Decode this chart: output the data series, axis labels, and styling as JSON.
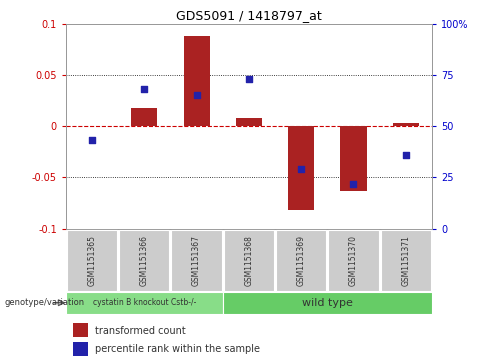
{
  "title": "GDS5091 / 1418797_at",
  "samples": [
    "GSM1151365",
    "GSM1151366",
    "GSM1151367",
    "GSM1151368",
    "GSM1151369",
    "GSM1151370",
    "GSM1151371"
  ],
  "bar_values": [
    0.0,
    0.018,
    0.088,
    0.008,
    -0.082,
    -0.063,
    0.003
  ],
  "dot_values": [
    0.43,
    0.68,
    0.65,
    0.73,
    0.29,
    0.22,
    0.36
  ],
  "ylim": [
    -0.1,
    0.1
  ],
  "yticks_left": [
    -0.1,
    -0.05,
    0.0,
    0.05,
    0.1
  ],
  "ytick_labels_left": [
    "-0.1",
    "-0.05",
    "0",
    "0.05",
    "0.1"
  ],
  "yticks_right": [
    0.0,
    0.25,
    0.5,
    0.75,
    1.0
  ],
  "ytick_labels_right": [
    "0",
    "25",
    "50",
    "75",
    "100%"
  ],
  "bar_color": "#AA2222",
  "dot_color": "#2222AA",
  "hline_color": "#CC0000",
  "gridline_color": "#000000",
  "group1_label": "cystatin B knockout Cstb-/-",
  "group2_label": "wild type",
  "group1_color": "#88DD88",
  "group2_color": "#66CC66",
  "genotype_label": "genotype/variation",
  "legend_bar_label": "transformed count",
  "legend_dot_label": "percentile rank within the sample",
  "group1_indices": [
    0,
    1,
    2
  ],
  "group2_indices": [
    3,
    4,
    5,
    6
  ],
  "plot_bg_color": "#FFFFFF",
  "ylabel_left_color": "#CC0000",
  "ylabel_right_color": "#0000CC"
}
